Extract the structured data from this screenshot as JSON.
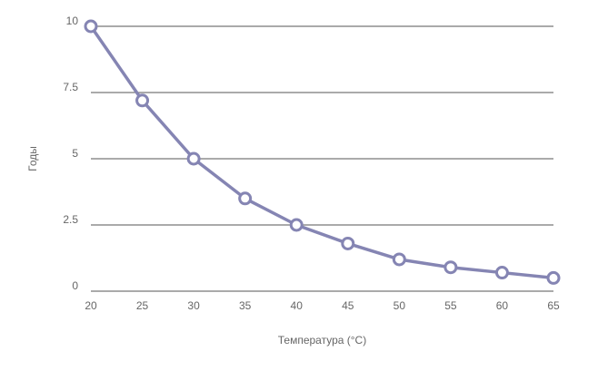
{
  "chart_data": {
    "type": "line",
    "x": [
      20,
      25,
      30,
      35,
      40,
      45,
      50,
      55,
      60,
      65
    ],
    "series": [
      {
        "values": [
          10,
          7.2,
          5,
          3.5,
          2.5,
          1.8,
          1.2,
          0.9,
          0.7,
          0.5
        ]
      }
    ],
    "xlabel": "Температура (°C)",
    "ylabel": "Годы",
    "x_ticks": [
      "20",
      "25",
      "30",
      "35",
      "40",
      "45",
      "50",
      "55",
      "60",
      "65"
    ],
    "y_ticks": [
      "0",
      "2.5",
      "5",
      "7.5",
      "10"
    ],
    "y_tick_values": [
      0,
      2.5,
      5,
      7.5,
      10
    ],
    "ylim": [
      0,
      10
    ],
    "grid": true,
    "legend": "none",
    "colors": {
      "line": "#8585b3",
      "grid": "#555555",
      "text": "#666666"
    }
  }
}
